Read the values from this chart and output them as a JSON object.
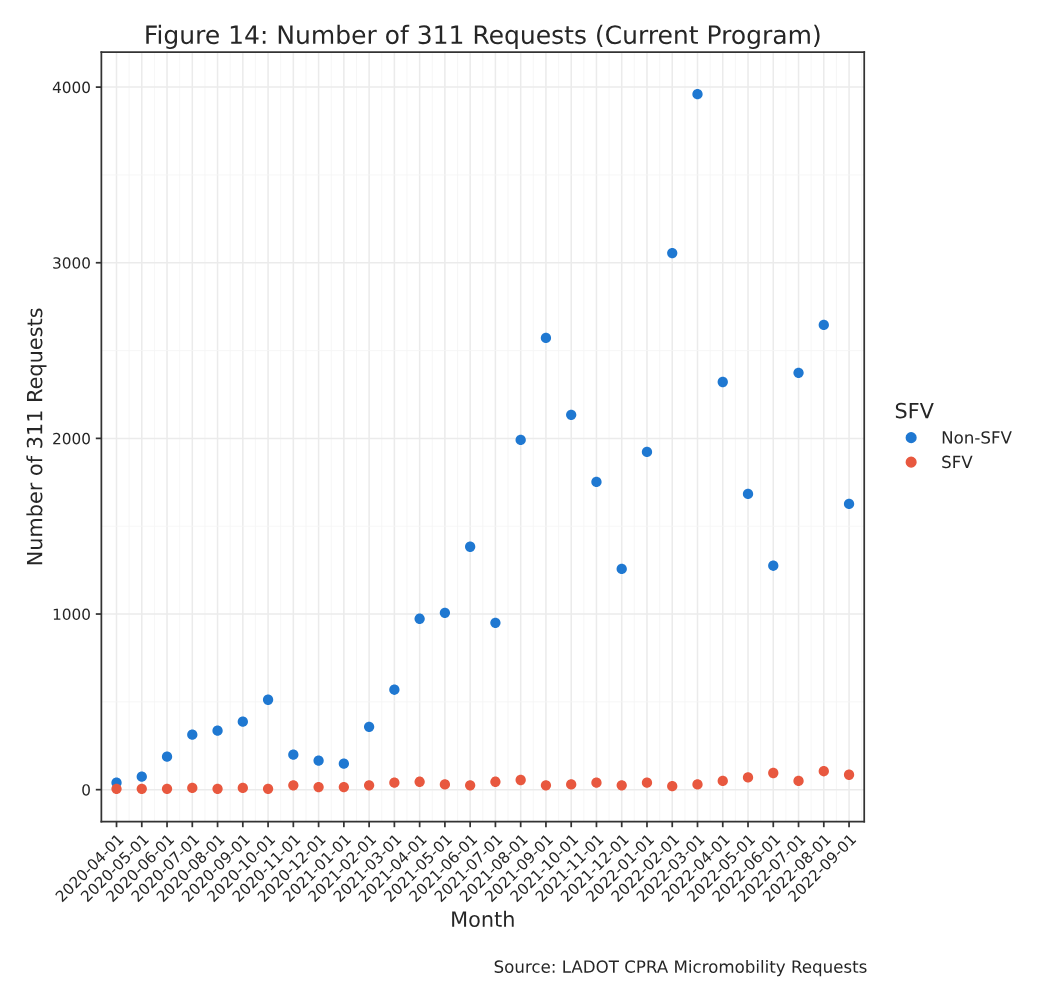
{
  "chart_data": {
    "type": "scatter",
    "title": "Figure 14: Number of 311 Requests (Current Program)",
    "xlabel": "Month",
    "ylabel": "Number of 311 Requests",
    "legend_title": "SFV",
    "categories": [
      "2020-04-01",
      "2020-05-01",
      "2020-06-01",
      "2020-07-01",
      "2020-08-01",
      "2020-09-01",
      "2020-10-01",
      "2020-11-01",
      "2020-12-01",
      "2021-01-01",
      "2021-02-01",
      "2021-03-01",
      "2021-04-01",
      "2021-05-01",
      "2021-06-01",
      "2021-07-01",
      "2021-08-01",
      "2021-09-01",
      "2021-10-01",
      "2021-11-01",
      "2021-12-01",
      "2022-01-01",
      "2022-02-01",
      "2022-03-01",
      "2022-04-01",
      "2022-05-01",
      "2022-06-01",
      "2022-07-01",
      "2022-08-01",
      "2022-09-01"
    ],
    "series": [
      {
        "name": "Non-SFV",
        "color": "#1f78d1",
        "values": [
          40,
          74,
          188,
          313,
          336,
          387,
          512,
          199,
          165,
          148,
          358,
          569,
          973,
          1007,
          1383,
          950,
          1991,
          2572,
          2134,
          1752,
          1257,
          1923,
          3055,
          3960,
          2321,
          1684,
          1275,
          2373,
          2646,
          1627
        ]
      },
      {
        "name": "SFV",
        "color": "#e8583f",
        "values": [
          5,
          5,
          5,
          10,
          5,
          10,
          5,
          25,
          15,
          15,
          25,
          40,
          45,
          30,
          25,
          45,
          55,
          25,
          30,
          40,
          25,
          40,
          20,
          30,
          50,
          70,
          95,
          50,
          105,
          85
        ]
      }
    ],
    "ylim": [
      -182,
      4199
    ],
    "yticks": [
      0,
      1000,
      2000,
      3000,
      4000
    ],
    "grid": true,
    "legend": "right",
    "marker": "circle",
    "annotations": [
      "Source: LADOT CPRA Micromobility Requests"
    ]
  }
}
